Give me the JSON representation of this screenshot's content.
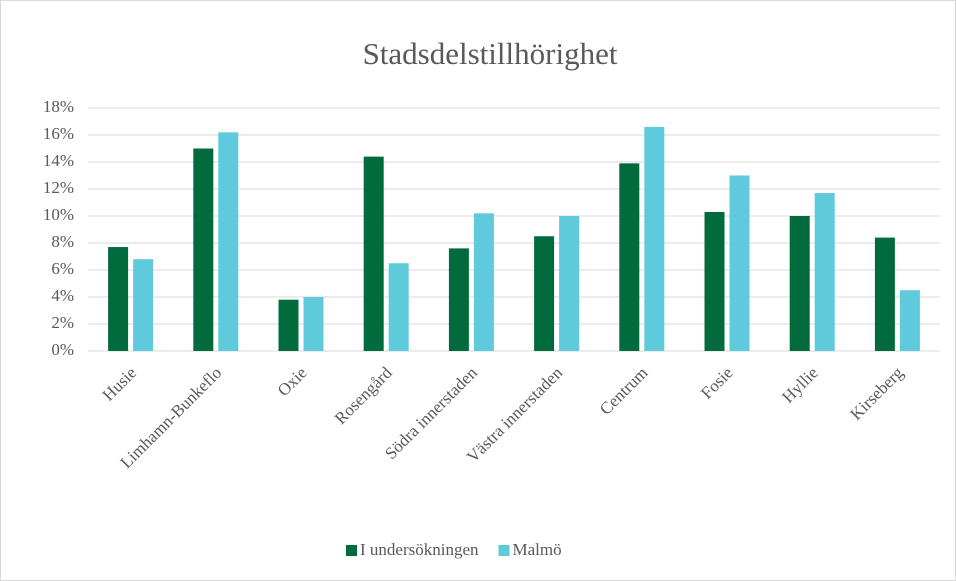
{
  "chart_data": {
    "type": "bar",
    "title": "Stadsdelstillhörighet",
    "categories": [
      "Husie",
      "Limhamn-Bunkeflo",
      "Oxie",
      "Rosengård",
      "Södra innerstaden",
      "Västra innerstaden",
      "Centrum",
      "Fosie",
      "Hyllie",
      "Kirseberg"
    ],
    "series": [
      {
        "name": "I undersökningen",
        "color": "#026b3e",
        "values": [
          7.7,
          15.0,
          3.8,
          14.4,
          7.6,
          8.5,
          13.9,
          10.3,
          10.0,
          8.4
        ]
      },
      {
        "name": "Malmö",
        "color": "#5ecadb",
        "values": [
          6.8,
          16.2,
          4.0,
          6.5,
          10.2,
          10.0,
          16.6,
          13.0,
          11.7,
          4.5
        ]
      }
    ],
    "ylim": [
      0,
      18
    ],
    "yticks": [
      {
        "value": 0,
        "label": "0%"
      },
      {
        "value": 2,
        "label": "2%"
      },
      {
        "value": 4,
        "label": "4%"
      },
      {
        "value": 6,
        "label": "6%"
      },
      {
        "value": 8,
        "label": "8%"
      },
      {
        "value": 10,
        "label": "10%"
      },
      {
        "value": 12,
        "label": "12%"
      },
      {
        "value": 14,
        "label": "14%"
      },
      {
        "value": 16,
        "label": "16%"
      },
      {
        "value": 18,
        "label": "18%"
      }
    ],
    "grid": true,
    "legend": "bottom"
  }
}
